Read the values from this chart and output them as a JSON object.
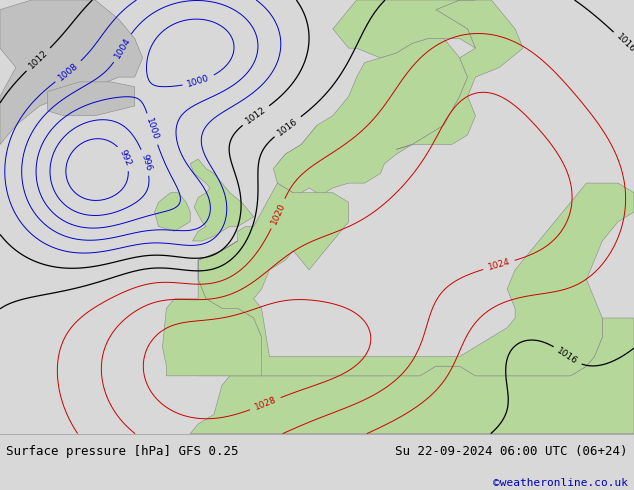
{
  "title_left": "Surface pressure [hPa] GFS 0.25",
  "title_right": "Su 22-09-2024 06:00 UTC (06+24)",
  "credit": "©weatheronline.co.uk",
  "land_color": "#b5d89a",
  "sea_color": "#d8d8d8",
  "gray_land_color": "#c0c0c0",
  "footer_bg": "#d8d8d8",
  "title_color": "#000000",
  "credit_color": "#0000bb",
  "red_color": "#cc0000",
  "blue_color": "#0000cc",
  "black_color": "#000000",
  "label_size": 6.5,
  "footer_fontsize": 9,
  "figsize": [
    6.34,
    4.9
  ],
  "dpi": 100,
  "xlim": [
    -30,
    50
  ],
  "ylim": [
    30,
    75
  ]
}
